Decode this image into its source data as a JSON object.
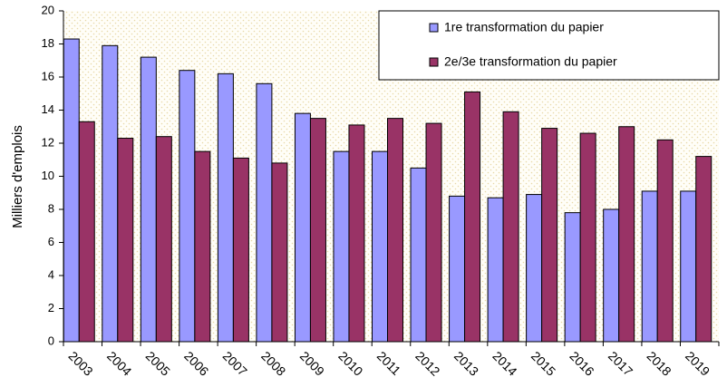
{
  "chart_data": {
    "type": "bar",
    "y_label": "Milliers d'emplois",
    "categories": [
      "2003",
      "2004",
      "2005",
      "2006",
      "2007",
      "2008",
      "2009",
      "2010",
      "2011",
      "2012",
      "2013",
      "2014",
      "2015",
      "2016",
      "2017",
      "2018",
      "2019"
    ],
    "series": [
      {
        "name": "1re transformation du papier",
        "color": "#9999ff",
        "values": [
          18.3,
          17.9,
          17.2,
          16.4,
          16.2,
          15.6,
          13.8,
          11.5,
          11.5,
          10.5,
          8.8,
          8.7,
          8.9,
          7.8,
          8.0,
          9.1,
          9.1
        ]
      },
      {
        "name": "2e/3e transformation du papier",
        "color": "#993366",
        "values": [
          13.3,
          12.3,
          12.4,
          11.5,
          11.1,
          10.8,
          13.5,
          13.1,
          13.5,
          13.2,
          15.1,
          13.9,
          12.9,
          12.6,
          13.0,
          12.2,
          11.2
        ]
      }
    ],
    "ylim": [
      0,
      20
    ],
    "yticks": [
      0,
      2,
      4,
      6,
      8,
      10,
      12,
      14,
      16,
      18,
      20
    ],
    "grid": false,
    "legend": "top-right"
  }
}
